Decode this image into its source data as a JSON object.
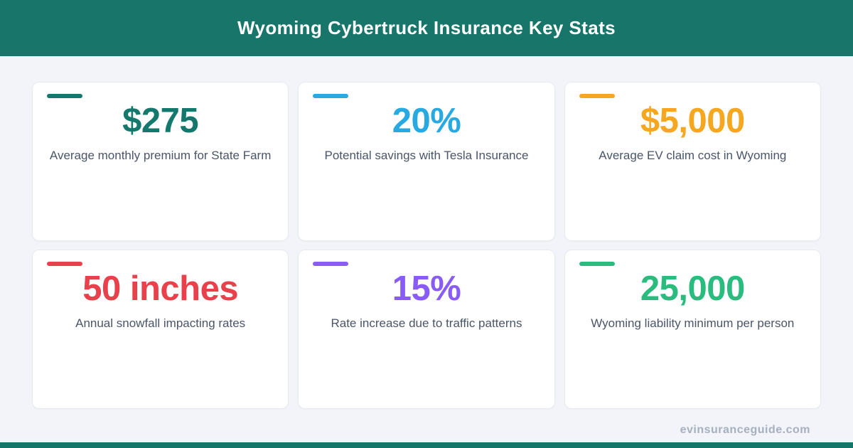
{
  "header": {
    "title": "Wyoming Cybertruck Insurance Key Stats",
    "bg_color": "#17756a"
  },
  "cards": [
    {
      "value": "$275",
      "label": "Average monthly premium for State Farm",
      "color": "#14786c"
    },
    {
      "value": "20%",
      "label": "Potential savings with Tesla Insurance",
      "color": "#29a9e1"
    },
    {
      "value": "$5,000",
      "label": "Average EV claim cost in Wyoming",
      "color": "#f5a81f"
    },
    {
      "value": "50 inches",
      "label": "Annual snowfall impacting rates",
      "color": "#e9414b"
    },
    {
      "value": "15%",
      "label": "Rate increase due to traffic patterns",
      "color": "#8a5cf6"
    },
    {
      "value": "25,000",
      "label": "Wyoming liability minimum per person",
      "color": "#2abb7f"
    }
  ],
  "footer": {
    "site": "evinsuranceguide.com",
    "bar_color": "#147569"
  }
}
